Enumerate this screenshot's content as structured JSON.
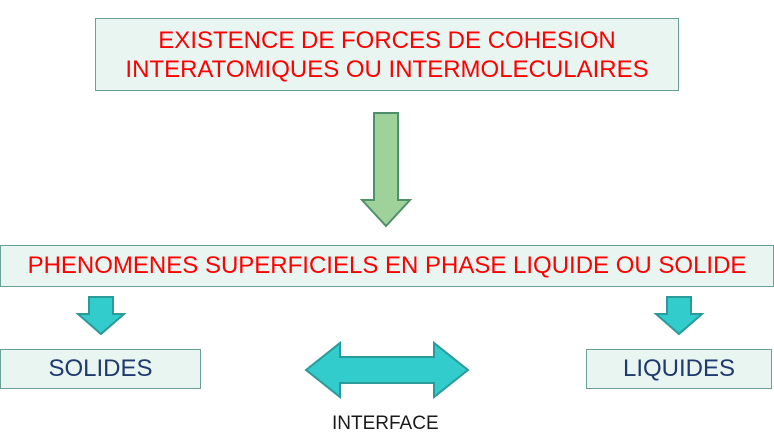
{
  "diagram": {
    "top_box": {
      "line1": "EXISTENCE DE FORCES DE COHESION",
      "line2": "INTERATOMIQUES OU INTERMOLECULAIRES"
    },
    "middle_box": {
      "label": "PHENOMENES SUPERFICIELS EN PHASE LIQUIDE OU SOLIDE"
    },
    "left_box": {
      "label": "SOLIDES"
    },
    "right_box": {
      "label": "LIQUIDES"
    },
    "interface_label": "INTERFACE",
    "colors": {
      "title_text": "#ff0000",
      "label_text": "#1f3a6e",
      "box_fill": "#e8f5f1",
      "box_border": "#6b9e94",
      "green_arrow_fill": "#9fd29a",
      "green_arrow_stroke": "#4f8f6a",
      "teal_arrow_fill": "#33cccc",
      "teal_arrow_stroke": "#2a9a9a"
    }
  }
}
